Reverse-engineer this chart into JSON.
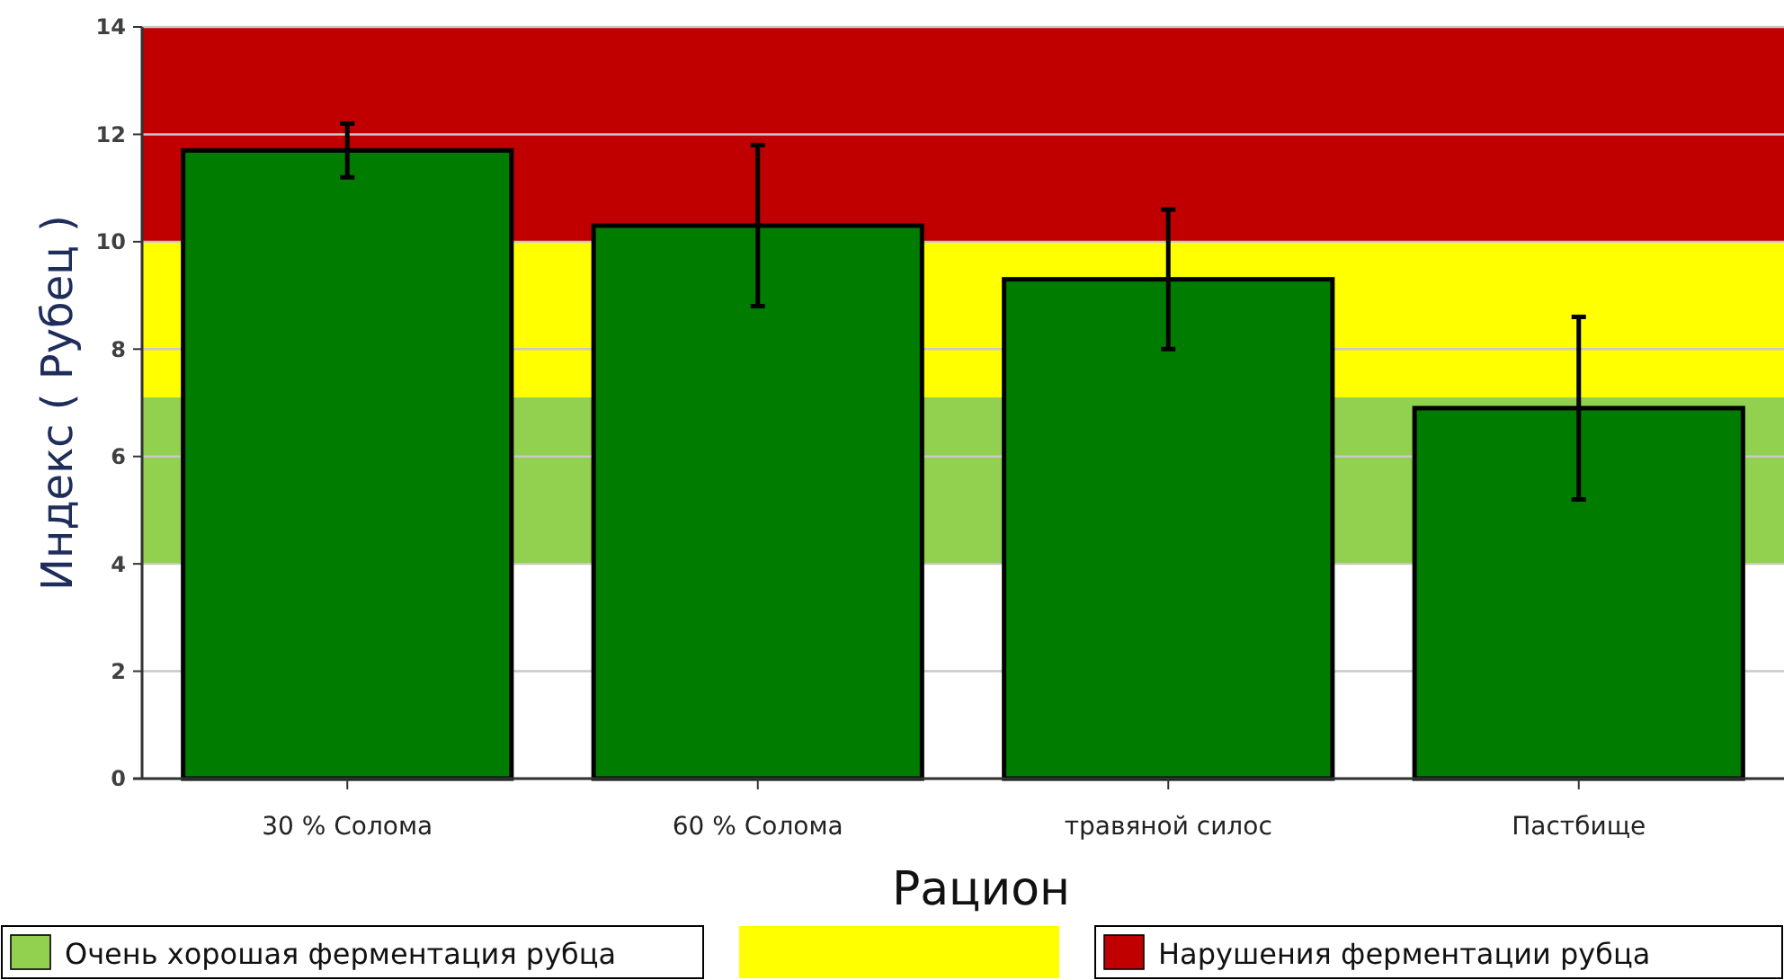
{
  "chart_data": {
    "type": "bar",
    "xlabel": "Рацион",
    "ylabel": "Индекс ( Рубец )",
    "categories": [
      "30 % Солома",
      "60 % Солома",
      "травяной силос",
      "Пастбище"
    ],
    "values": [
      11.7,
      10.3,
      9.3,
      6.9
    ],
    "errors": [
      0.5,
      1.5,
      1.3,
      1.7
    ],
    "color": "#007d00",
    "ylim": [
      0,
      14
    ],
    "yticks": [
      0,
      2,
      4,
      6,
      8,
      10,
      12,
      14
    ],
    "grid": "y",
    "legend": "bottom",
    "bands": [
      {
        "axis": "y",
        "from": 4,
        "to": 7.1,
        "label": "Очень хорошая ферментация рубца",
        "color": "#92d050"
      },
      {
        "axis": "y",
        "from": 7.1,
        "to": 10,
        "label": null,
        "color": "#ffff00"
      },
      {
        "axis": "y",
        "from": 10,
        "to": 14,
        "label": "Нарушения ферментации рубца",
        "color": "#c00000"
      }
    ]
  }
}
